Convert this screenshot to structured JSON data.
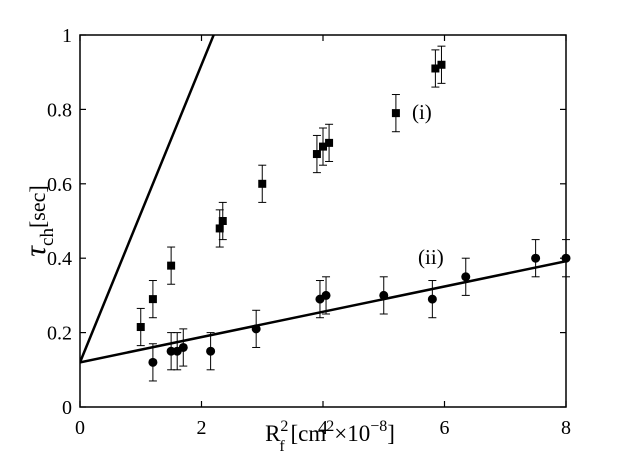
{
  "chart_data": {
    "type": "scatter",
    "xlim": [
      0,
      8
    ],
    "ylim": [
      0,
      1
    ],
    "x_ticks": [
      0,
      2,
      4,
      6,
      8
    ],
    "y_ticks": [
      0,
      0.2,
      0.4,
      0.6,
      0.8,
      1
    ],
    "x_tick_labels": [
      "0",
      "2",
      "4",
      "6",
      "8"
    ],
    "y_tick_labels": [
      "0",
      "0.2",
      "0.4",
      "0.6",
      "0.8",
      "1"
    ],
    "xlabel": {
      "main": "R",
      "sub": "f",
      "sup": "2",
      "unit_open": " [cm",
      "unit_sup": "2",
      "times": "×",
      "unit_mid": "10",
      "unit_exp": "−8",
      "unit_close": "]"
    },
    "ylabel": {
      "main": "τ",
      "sub": "ch",
      "unit": "[sec]"
    },
    "grid": false,
    "series": [
      {
        "annotation": "(i)",
        "annotation_at": [
          5.3,
          0.79
        ],
        "marker": "square",
        "fit": {
          "intercept": 0.12,
          "slope": 0.4
        },
        "points": [
          {
            "x": 1.0,
            "y": 0.215,
            "err": 0.05
          },
          {
            "x": 1.2,
            "y": 0.29,
            "err": 0.05
          },
          {
            "x": 1.5,
            "y": 0.38,
            "err": 0.05
          },
          {
            "x": 2.3,
            "y": 0.48,
            "err": 0.05
          },
          {
            "x": 2.35,
            "y": 0.5,
            "err": 0.05
          },
          {
            "x": 3.0,
            "y": 0.6,
            "err": 0.05
          },
          {
            "x": 3.9,
            "y": 0.68,
            "err": 0.05
          },
          {
            "x": 4.0,
            "y": 0.7,
            "err": 0.05
          },
          {
            "x": 4.1,
            "y": 0.71,
            "err": 0.05
          },
          {
            "x": 5.2,
            "y": 0.79,
            "err": 0.05
          },
          {
            "x": 5.85,
            "y": 0.91,
            "err": 0.05
          },
          {
            "x": 5.95,
            "y": 0.92,
            "err": 0.05
          }
        ]
      },
      {
        "annotation": "(ii)",
        "annotation_at": [
          5.4,
          0.4
        ],
        "marker": "circle",
        "fit": {
          "intercept": 0.12,
          "slope": 0.034
        },
        "points": [
          {
            "x": 1.2,
            "y": 0.12,
            "err": 0.05
          },
          {
            "x": 1.5,
            "y": 0.15,
            "err": 0.05
          },
          {
            "x": 1.6,
            "y": 0.15,
            "err": 0.05
          },
          {
            "x": 1.7,
            "y": 0.16,
            "err": 0.05
          },
          {
            "x": 2.15,
            "y": 0.15,
            "err": 0.05
          },
          {
            "x": 2.9,
            "y": 0.21,
            "err": 0.05
          },
          {
            "x": 3.95,
            "y": 0.29,
            "err": 0.05
          },
          {
            "x": 4.05,
            "y": 0.3,
            "err": 0.05
          },
          {
            "x": 5.0,
            "y": 0.3,
            "err": 0.05
          },
          {
            "x": 5.8,
            "y": 0.29,
            "err": 0.05
          },
          {
            "x": 6.35,
            "y": 0.35,
            "err": 0.05
          },
          {
            "x": 7.5,
            "y": 0.4,
            "err": 0.05
          },
          {
            "x": 8.0,
            "y": 0.4,
            "err": 0.05
          }
        ]
      }
    ]
  }
}
